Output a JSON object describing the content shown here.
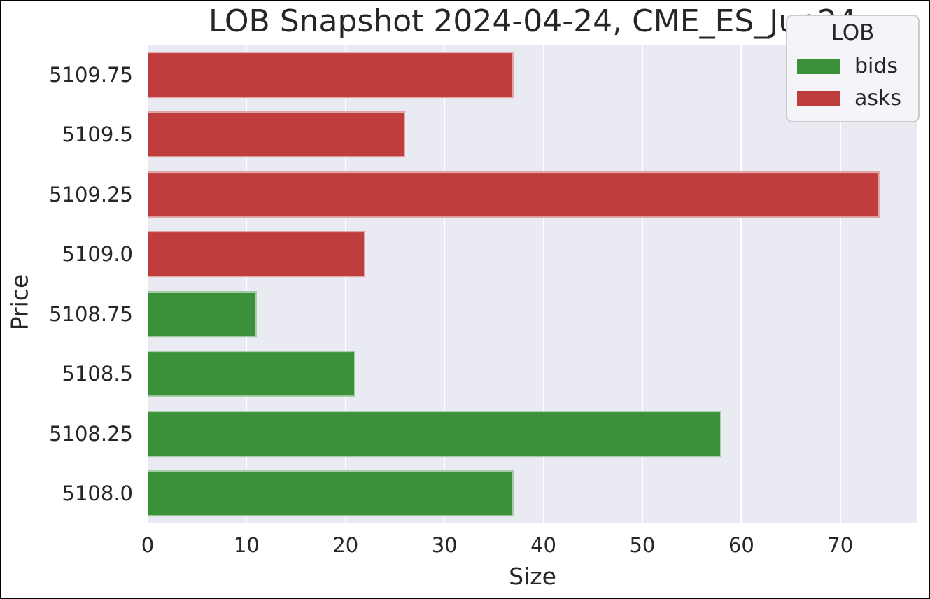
{
  "chart_data": {
    "type": "bar",
    "orientation": "horizontal",
    "title": "LOB Snapshot 2024-04-24, CME_ES_Jun24",
    "xlabel": "Size",
    "ylabel": "Price",
    "categories": [
      "5109.75",
      "5109.5",
      "5109.25",
      "5109.0",
      "5108.75",
      "5108.5",
      "5108.25",
      "5108.0"
    ],
    "bars": [
      {
        "price": "5109.75",
        "size": 37,
        "side": "asks"
      },
      {
        "price": "5109.5",
        "size": 26,
        "side": "asks"
      },
      {
        "price": "5109.25",
        "size": 74,
        "side": "asks"
      },
      {
        "price": "5109.0",
        "size": 22,
        "side": "asks"
      },
      {
        "price": "5108.75",
        "size": 11,
        "side": "bids"
      },
      {
        "price": "5108.5",
        "size": 21,
        "side": "bids"
      },
      {
        "price": "5108.25",
        "size": 58,
        "side": "bids"
      },
      {
        "price": "5108.0",
        "size": 37,
        "side": "bids"
      }
    ],
    "series": [
      {
        "name": "bids",
        "color": "#3a913a",
        "values": [
          null,
          null,
          null,
          null,
          11,
          21,
          58,
          37
        ]
      },
      {
        "name": "asks",
        "color": "#c03d3d",
        "values": [
          37,
          26,
          74,
          22,
          null,
          null,
          null,
          null
        ]
      }
    ],
    "xticks": [
      0,
      10,
      20,
      30,
      40,
      50,
      60,
      70
    ],
    "xlim": [
      0,
      77.8
    ],
    "bar_band_fraction": 0.77,
    "grid": true,
    "legend": {
      "title": "LOB",
      "position": "upper-right",
      "entries": [
        {
          "label": "bids",
          "color": "#3a913a"
        },
        {
          "label": "asks",
          "color": "#c03d3d"
        }
      ]
    },
    "colors": {
      "bids": "#3a913a",
      "asks": "#c03d3d",
      "plot_background": "#eaeaf2",
      "gridline": "#ffffff",
      "text": "#262626"
    }
  }
}
